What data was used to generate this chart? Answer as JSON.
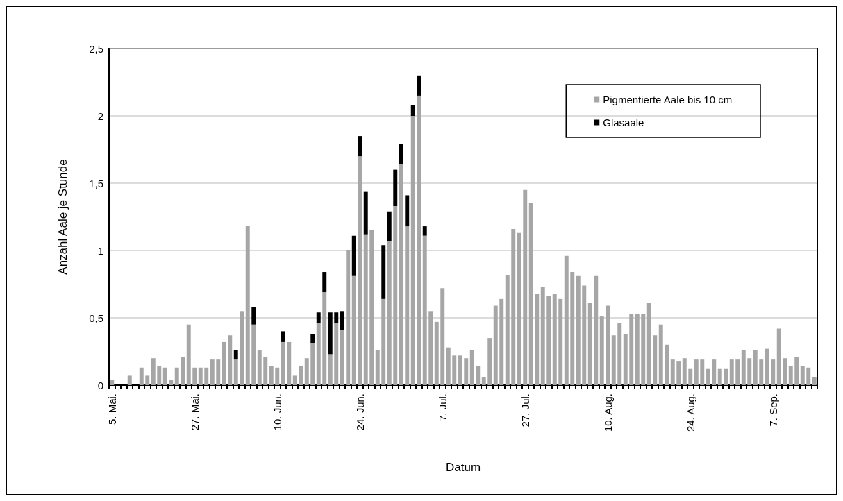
{
  "chart_data": {
    "type": "bar",
    "stacked": true,
    "xlabel": "Datum",
    "ylabel": "Anzahl Aale je Stunde",
    "categories": [
      "5. Mai.",
      null,
      null,
      null,
      null,
      null,
      null,
      null,
      null,
      null,
      null,
      null,
      null,
      null,
      "27. Mai.",
      null,
      null,
      null,
      null,
      null,
      null,
      null,
      null,
      null,
      null,
      null,
      null,
      null,
      "10. Jun.",
      null,
      null,
      null,
      null,
      null,
      null,
      null,
      null,
      null,
      null,
      null,
      null,
      null,
      "24. Jun.",
      null,
      null,
      null,
      null,
      null,
      null,
      null,
      null,
      null,
      null,
      null,
      null,
      null,
      "7. Jul.",
      null,
      null,
      null,
      null,
      null,
      null,
      null,
      null,
      null,
      null,
      null,
      null,
      null,
      "27. Jul.",
      null,
      null,
      null,
      null,
      null,
      null,
      null,
      null,
      null,
      null,
      null,
      null,
      null,
      "10. Aug.",
      null,
      null,
      null,
      null,
      null,
      null,
      null,
      null,
      null,
      null,
      null,
      null,
      null,
      "24. Aug.",
      null,
      null,
      null,
      null,
      null,
      null,
      null,
      null,
      null,
      null,
      null,
      null,
      null,
      "7. Sep.",
      null,
      null,
      null,
      null,
      null,
      null,
      null
    ],
    "series": [
      {
        "name": "Pigmentierte Aale bis 10 cm",
        "color": "#a6a6a6",
        "values": [
          0.04,
          0,
          0,
          0.07,
          0,
          0.13,
          0.07,
          0.2,
          0.14,
          0.13,
          0.04,
          0.13,
          0.21,
          0.45,
          0.13,
          0.13,
          0.13,
          0.19,
          0.19,
          0.32,
          0.37,
          0.19,
          0.55,
          1.18,
          0.45,
          0.26,
          0.21,
          0.14,
          0.13,
          0.32,
          0.32,
          0.07,
          0.14,
          0.2,
          0.31,
          0.46,
          0.69,
          0.23,
          0.46,
          0.41,
          1.0,
          0.81,
          1.7,
          1.12,
          1.15,
          0.26,
          0.64,
          1.07,
          1.33,
          1.64,
          1.18,
          2.0,
          2.15,
          1.11,
          0.55,
          0.47,
          0.72,
          0.28,
          0.22,
          0.22,
          0.2,
          0.26,
          0.14,
          0.06,
          0.35,
          0.59,
          0.64,
          0.82,
          1.16,
          1.13,
          1.45,
          1.35,
          0.68,
          0.73,
          0.66,
          0.68,
          0.64,
          0.96,
          0.84,
          0.81,
          0.74,
          0.61,
          0.81,
          0.51,
          0.59,
          0.37,
          0.46,
          0.38,
          0.53,
          0.53,
          0.53,
          0.61,
          0.37,
          0.45,
          0.3,
          0.19,
          0.18,
          0.2,
          0.12,
          0.19,
          0.19,
          0.12,
          0.19,
          0.12,
          0.12,
          0.19,
          0.19,
          0.26,
          0.2,
          0.26,
          0.19,
          0.27,
          0.19,
          0.42,
          0.2,
          0.14,
          0.21,
          0.14,
          0.13,
          0.06
        ]
      },
      {
        "name": "Glasaale",
        "color": "#000000",
        "values": [
          0,
          0,
          0,
          0,
          0,
          0,
          0,
          0,
          0,
          0,
          0,
          0,
          0,
          0,
          0,
          0,
          0,
          0,
          0,
          0,
          0,
          0.07,
          0,
          0,
          0.13,
          0,
          0,
          0,
          0,
          0.08,
          0,
          0,
          0,
          0,
          0.07,
          0.08,
          0.15,
          0.31,
          0.08,
          0.14,
          0,
          0.3,
          0.15,
          0.32,
          0,
          0,
          0.4,
          0.22,
          0.27,
          0.15,
          0.23,
          0.08,
          0.15,
          0.07,
          0,
          0,
          0,
          0,
          0,
          0,
          0,
          0,
          0,
          0,
          0,
          0,
          0,
          0,
          0,
          0,
          0,
          0,
          0,
          0,
          0,
          0,
          0,
          0,
          0,
          0,
          0,
          0,
          0,
          0,
          0,
          0,
          0,
          0,
          0,
          0,
          0,
          0,
          0,
          0,
          0,
          0,
          0,
          0,
          0,
          0,
          0,
          0,
          0,
          0,
          0,
          0,
          0,
          0,
          0,
          0,
          0,
          0,
          0,
          0,
          0,
          0,
          0,
          0,
          0,
          0
        ]
      }
    ],
    "ylim": [
      0,
      2.5
    ],
    "yticks": [
      0,
      {
        "value": 0.5,
        "label": "0,5"
      },
      1,
      {
        "value": 1.5,
        "label": "1,5"
      },
      2,
      {
        "value": 2.5,
        "label": "2,5"
      }
    ],
    "grid": "y",
    "legend": "top right"
  }
}
